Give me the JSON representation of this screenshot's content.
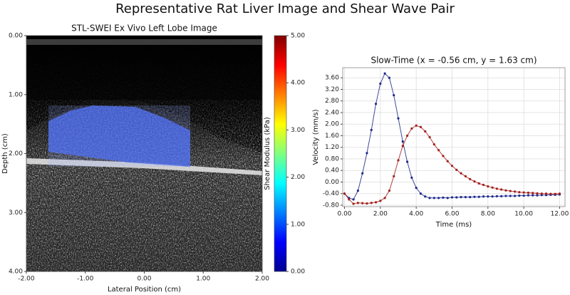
{
  "title": "Representative Rat Liver Image and Shear Wave Pair",
  "chart_data": [
    {
      "type": "image",
      "title": "STL-SWEI Ex Vivo Left Lobe Image",
      "xlabel": "Lateral Position (cm)",
      "ylabel": "Depth (cm)",
      "xlim": [
        -2,
        2
      ],
      "ylim": [
        4,
        0
      ],
      "xticks": [
        {
          "value": -2,
          "label": "-2.00"
        },
        {
          "value": -1,
          "label": "-1.00"
        },
        {
          "value": 0,
          "label": "0.00"
        },
        {
          "value": 1,
          "label": "1.00"
        },
        {
          "value": 2,
          "label": "2.00"
        }
      ],
      "yticks": [
        {
          "value": 0,
          "label": "0.00"
        },
        {
          "value": 1,
          "label": "1.00"
        },
        {
          "value": 2,
          "label": "2.00"
        },
        {
          "value": 3,
          "label": "3.00"
        },
        {
          "value": 4,
          "label": "4.00"
        }
      ],
      "colorbar": {
        "label": "Shear Modulus (kPa)",
        "colormap": "jet",
        "lim": [
          0,
          5
        ],
        "ticks": [
          {
            "value": 0,
            "label": "0.00"
          },
          {
            "value": 1,
            "label": "1.00"
          },
          {
            "value": 2,
            "label": "2.00"
          },
          {
            "value": 3,
            "label": "3.00"
          },
          {
            "value": 4,
            "label": "4.00"
          },
          {
            "value": 5,
            "label": "5.00"
          }
        ]
      }
    },
    {
      "type": "line",
      "title": "Slow-Time (x = -0.56 cm, y = 1.63 cm)",
      "xlabel": "Time (ms)",
      "ylabel": "Velocity (mm/s)",
      "grid": true,
      "xlim": [
        -0.1,
        12.3
      ],
      "ylim": [
        -0.85,
        3.95
      ],
      "xticks": [
        {
          "value": 0,
          "label": "0.00"
        },
        {
          "value": 2,
          "label": "2.00"
        },
        {
          "value": 4,
          "label": "4.00"
        },
        {
          "value": 6,
          "label": "6.00"
        },
        {
          "value": 8,
          "label": "8.00"
        },
        {
          "value": 10,
          "label": "10.00"
        },
        {
          "value": 12,
          "label": "12.00"
        }
      ],
      "yticks": [
        {
          "value": -0.8,
          "label": "-0.80"
        },
        {
          "value": -0.4,
          "label": "-0.40"
        },
        {
          "value": 0,
          "label": "0.00"
        },
        {
          "value": 0.4,
          "label": "0.40"
        },
        {
          "value": 0.8,
          "label": "0.80"
        },
        {
          "value": 1.2,
          "label": "1.20"
        },
        {
          "value": 1.6,
          "label": "1.60"
        },
        {
          "value": 2,
          "label": "2.00"
        },
        {
          "value": 2.4,
          "label": "2.40"
        },
        {
          "value": 2.8,
          "label": "2.80"
        },
        {
          "value": 3.2,
          "label": "3.20"
        },
        {
          "value": 3.6,
          "label": "3.60"
        }
      ],
      "x": [
        0,
        0.25,
        0.5,
        0.75,
        1,
        1.25,
        1.5,
        1.75,
        2,
        2.25,
        2.5,
        2.75,
        3,
        3.25,
        3.5,
        3.75,
        4,
        4.25,
        4.5,
        4.75,
        5,
        5.25,
        5.5,
        5.75,
        6,
        6.25,
        6.5,
        6.75,
        7,
        7.25,
        7.5,
        7.75,
        8,
        8.25,
        8.5,
        8.75,
        9,
        9.25,
        9.5,
        9.75,
        10,
        10.25,
        10.5,
        10.75,
        11,
        11.25,
        11.5,
        11.75,
        12
      ],
      "series": [
        {
          "color": "#1f2a8c",
          "values": [
            -0.4,
            -0.55,
            -0.6,
            -0.3,
            0.3,
            1.0,
            1.8,
            2.7,
            3.4,
            3.75,
            3.6,
            3.0,
            2.2,
            1.4,
            0.7,
            0.15,
            -0.2,
            -0.4,
            -0.5,
            -0.55,
            -0.55,
            -0.55,
            -0.54,
            -0.55,
            -0.53,
            -0.53,
            -0.52,
            -0.52,
            -0.52,
            -0.51,
            -0.51,
            -0.5,
            -0.5,
            -0.5,
            -0.49,
            -0.49,
            -0.48,
            -0.48,
            -0.48,
            -0.47,
            -0.47,
            -0.46,
            -0.46,
            -0.46,
            -0.45,
            -0.45,
            -0.44,
            -0.44,
            -0.43
          ]
        },
        {
          "color": "#a3201c",
          "values": [
            -0.4,
            -0.6,
            -0.75,
            -0.72,
            -0.73,
            -0.74,
            -0.72,
            -0.7,
            -0.65,
            -0.55,
            -0.3,
            0.2,
            0.75,
            1.25,
            1.6,
            1.85,
            1.95,
            1.9,
            1.75,
            1.55,
            1.3,
            1.1,
            0.9,
            0.72,
            0.56,
            0.42,
            0.3,
            0.2,
            0.1,
            0.02,
            -0.05,
            -0.1,
            -0.15,
            -0.19,
            -0.23,
            -0.26,
            -0.29,
            -0.31,
            -0.33,
            -0.35,
            -0.36,
            -0.37,
            -0.38,
            -0.39,
            -0.4,
            -0.4,
            -0.41,
            -0.41,
            -0.4
          ]
        }
      ]
    }
  ]
}
